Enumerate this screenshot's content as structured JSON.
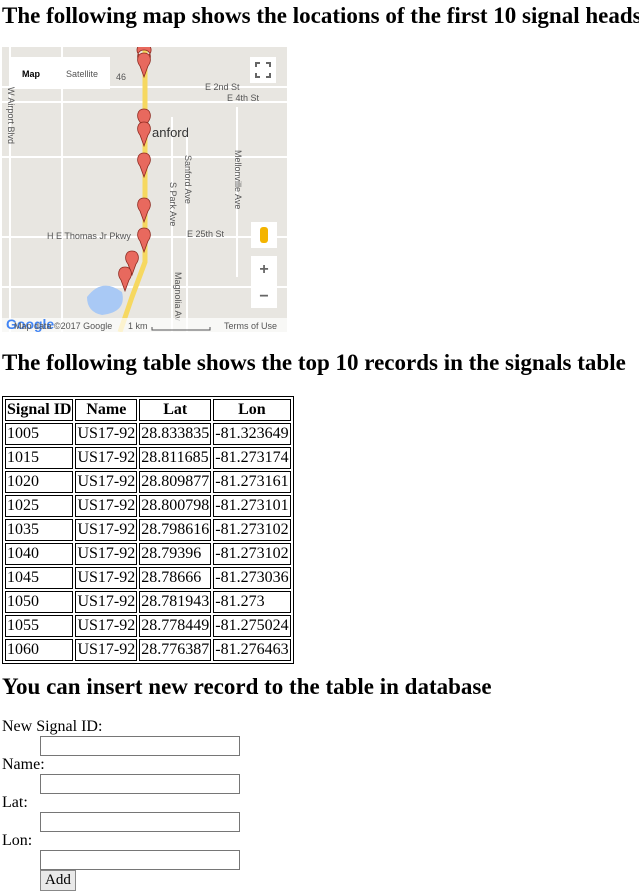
{
  "headings": [
    "The following map shows the locations of the first 10 signal heads",
    "The following table shows the top 10 records in the signals table",
    "You can insert new record to the table in database"
  ],
  "map": {
    "controls": [
      "Map",
      "Satellite",
      "+",
      "−"
    ],
    "labels": [
      "46",
      "E 2nd St",
      "E 4th St",
      "anford",
      "W Airport Blvd",
      "S Park Ave",
      "Sanford Ave",
      "Mellonville Ave",
      "H E Thomas Jr Pkwy",
      "E 25th St",
      "Magnolia Av"
    ],
    "footer": [
      "Google",
      "Map data ©2017 Google",
      "1 km",
      "Terms of Use"
    ]
  },
  "table": {
    "header": [
      "Signal ID",
      "Name",
      "Lat",
      "Lon"
    ],
    "rows": [
      [
        "1005",
        "US17-92",
        "28.833835",
        "-81.323649"
      ],
      [
        "1015",
        "US17-92",
        "28.811685",
        "-81.273174"
      ],
      [
        "1020",
        "US17-92",
        "28.809877",
        "-81.273161"
      ],
      [
        "1025",
        "US17-92",
        "28.800798",
        "-81.273101"
      ],
      [
        "1035",
        "US17-92",
        "28.798616",
        "-81.273102"
      ],
      [
        "1040",
        "US17-92",
        "28.79396",
        "-81.273102"
      ],
      [
        "1045",
        "US17-92",
        "28.78666",
        "-81.273036"
      ],
      [
        "1050",
        "US17-92",
        "28.781943",
        "-81.273"
      ],
      [
        "1055",
        "US17-92",
        "28.778449",
        "-81.275024"
      ],
      [
        "1060",
        "US17-92",
        "28.776387",
        "-81.276463"
      ]
    ]
  },
  "form": {
    "fields": [
      "New Signal ID:",
      "Name:",
      "Lat:",
      "Lon:"
    ],
    "button": "Add"
  }
}
